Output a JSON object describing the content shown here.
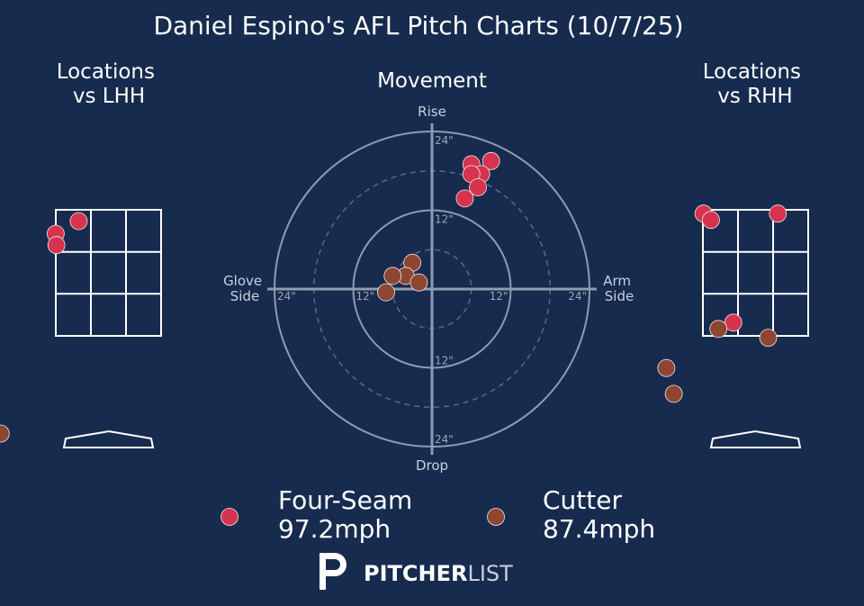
{
  "title": "Daniel Espino's AFL Pitch Charts (10/7/25)",
  "colors": {
    "background": "#162B4E",
    "four_seam": "#D7334E",
    "cutter": "#8E4631",
    "zone_line": "#FFFFFF",
    "polar_line": "#8F9BB0"
  },
  "chart_data": [
    {
      "type": "scatter",
      "title_lines": [
        "Locations",
        "vs LHH"
      ],
      "series": [
        {
          "name": "Four-Seam",
          "points": [
            [
              -0.4,
              3.32
            ],
            [
              -0.71,
              3.12
            ],
            [
              -0.7,
              2.94
            ]
          ]
        },
        {
          "name": "Cutter",
          "points": [
            [
              -1.45,
              -0.05
            ]
          ]
        }
      ]
    },
    {
      "type": "scatter",
      "title": "Movement",
      "axis_labels": {
        "top": "Rise",
        "bottom": "Drop",
        "left": [
          "Glove",
          "Side"
        ],
        "right": [
          "Arm",
          "Side"
        ]
      },
      "ring_labels": [
        "12\"",
        "24\""
      ],
      "rings": [
        6,
        12,
        18,
        24
      ],
      "xlim": [
        -24,
        24
      ],
      "ylim": [
        -24,
        24
      ],
      "series": [
        {
          "name": "Four-Seam",
          "points": [
            [
              6,
              19
            ],
            [
              9,
              19.5
            ],
            [
              7.5,
              17.5
            ],
            [
              6,
              17.5
            ],
            [
              7,
              15.5
            ],
            [
              5,
              13.8
            ]
          ]
        },
        {
          "name": "Cutter",
          "points": [
            [
              -3,
              4
            ],
            [
              -4,
              2
            ],
            [
              -6,
              2
            ],
            [
              -2,
              1
            ],
            [
              -7,
              -0.5
            ]
          ]
        }
      ]
    },
    {
      "type": "scatter",
      "title_lines": [
        "Locations",
        "vs RHH"
      ],
      "series": [
        {
          "name": "Four-Seam",
          "points": [
            [
              -0.7,
              3.44
            ],
            [
              -0.6,
              3.34
            ],
            [
              0.3,
              3.44
            ],
            [
              -0.3,
              1.71
            ]
          ]
        },
        {
          "name": "Cutter",
          "points": [
            [
              -0.5,
              1.61
            ],
            [
              0.17,
              1.47
            ],
            [
              -1.2,
              0.99
            ],
            [
              -1.1,
              0.58
            ]
          ]
        }
      ]
    }
  ],
  "legend": [
    {
      "name": "Four-Seam",
      "velo": "97.2mph"
    },
    {
      "name": "Cutter",
      "velo": "87.4mph"
    }
  ],
  "brand": {
    "bold": "PITCHER",
    "light": "LIST"
  }
}
